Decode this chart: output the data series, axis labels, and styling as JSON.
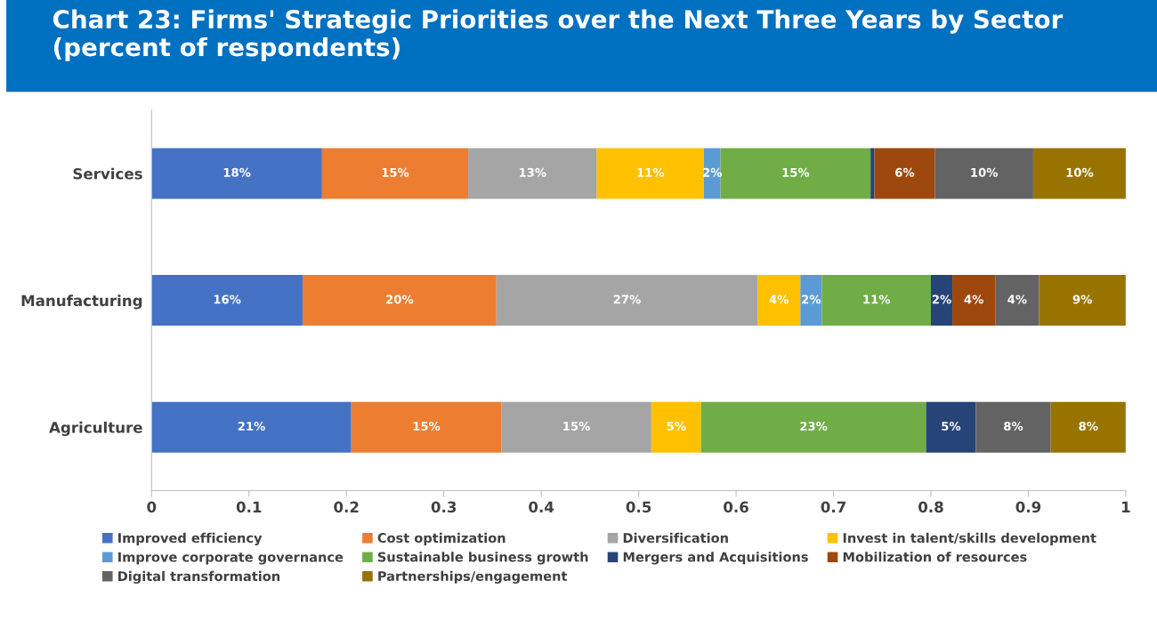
{
  "chart_data": {
    "type": "bar",
    "orientation": "horizontal",
    "stacked": true,
    "title": "Chart 23: Firms' Strategic Priorities over the Next Three Years by Sector (percent of respondents)",
    "categories": [
      "Services",
      "Manufacturing",
      "Agriculture"
    ],
    "xlim": [
      0,
      1
    ],
    "xticks": [
      0,
      0.1,
      0.2,
      0.3,
      0.4,
      0.5,
      0.6,
      0.7,
      0.8,
      0.9,
      1
    ],
    "grid": false,
    "legend": "bottom",
    "series": [
      {
        "name": "Improved efficiency",
        "color": "#4472c4",
        "values": [
          0.175,
          0.155,
          0.205
        ],
        "value_labels": [
          "18%",
          "16%",
          "21%"
        ]
      },
      {
        "name": "Cost optimization",
        "color": "#ed7d31",
        "values": [
          0.15,
          0.199,
          0.154
        ],
        "value_labels": [
          "15%",
          "20%",
          "15%"
        ]
      },
      {
        "name": "Diversification",
        "color": "#a5a5a5",
        "values": [
          0.132,
          0.268,
          0.154
        ],
        "value_labels": [
          "13%",
          "27%",
          "15%"
        ]
      },
      {
        "name": "Invest in talent/skills development",
        "color": "#ffc000",
        "values": [
          0.11,
          0.044,
          0.051
        ],
        "value_labels": [
          "11%",
          "4%",
          "5%"
        ]
      },
      {
        "name": "Improve corporate governance",
        "color": "#5b9bd5",
        "values": [
          0.017,
          0.022,
          null
        ],
        "value_labels": [
          "2%",
          "2%",
          null
        ]
      },
      {
        "name": "Sustainable business growth",
        "color": "#70ad47",
        "values": [
          0.154,
          0.112,
          0.231
        ],
        "value_labels": [
          "15%",
          "11%",
          "23%"
        ]
      },
      {
        "name": "Mergers and Acquisitions",
        "color": "#264478",
        "values": [
          0.004,
          0.022,
          0.051
        ],
        "value_labels": [
          null,
          "2%",
          "5%"
        ]
      },
      {
        "name": "Mobilization of resources",
        "color": "#9e480e",
        "values": [
          0.062,
          0.044,
          null
        ],
        "value_labels": [
          "6%",
          "4%",
          null
        ]
      },
      {
        "name": "Digital transformation",
        "color": "#636363",
        "values": [
          0.101,
          0.045,
          0.077
        ],
        "value_labels": [
          "10%",
          "4%",
          "8%"
        ]
      },
      {
        "name": "Partnerships/engagement",
        "color": "#997300",
        "values": [
          0.097,
          0.089,
          0.077
        ],
        "value_labels": [
          "10%",
          "9%",
          "8%"
        ]
      }
    ]
  }
}
